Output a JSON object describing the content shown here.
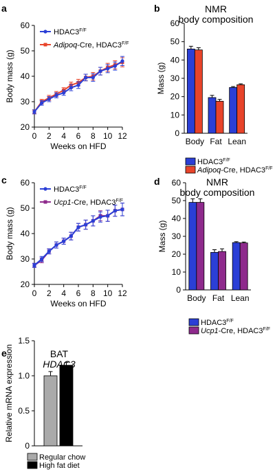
{
  "panels": [
    {
      "letter": "a",
      "chart_data": {
        "type": "line",
        "xlabel": "Weeks on HFD",
        "ylabel": "Body mass (g)",
        "xlim": [
          0,
          12
        ],
        "ylim": [
          20,
          60
        ],
        "xticks": [
          0,
          2,
          4,
          6,
          8,
          10,
          12
        ],
        "yticks": [
          20,
          30,
          40,
          50,
          60
        ],
        "legend": "top-left",
        "x": [
          0,
          1,
          2,
          3,
          4,
          5,
          6,
          7,
          8,
          9,
          10,
          11,
          12
        ],
        "series": [
          {
            "name": "HDAC3",
            "sup": "F/F",
            "color": "#2b3fd6",
            "values": [
              26,
              29.5,
              31,
              32.5,
              33.5,
              35.5,
              36.5,
              39.5,
              39.5,
              42,
              43,
              44,
              46
            ],
            "errors": [
              0.8,
              0.9,
              1,
              1,
              1,
              1.2,
              1.3,
              1.3,
              1.5,
              1.5,
              1.6,
              1.6,
              1.8
            ]
          },
          {
            "name": "",
            "name_italic": "Adipoq",
            "name_rest": "-Cre, HDAC3",
            "sup": "F/F",
            "color": "#e8442a",
            "values": [
              26,
              30,
              31.5,
              33,
              34.5,
              36.5,
              37.5,
              39.5,
              40,
              42,
              43.5,
              44.5,
              45.5
            ],
            "errors": [
              0.8,
              0.9,
              1,
              1,
              1,
              1.2,
              1.3,
              1.3,
              1.5,
              1.5,
              1.6,
              1.6,
              1.8
            ]
          }
        ]
      }
    },
    {
      "letter": "b",
      "chart_data": {
        "type": "bar",
        "title_lines": [
          "NMR",
          "body composition"
        ],
        "ylabel": "Mass (g)",
        "ylim": [
          0,
          60
        ],
        "yticks": [
          0,
          10,
          20,
          30,
          40,
          50,
          60
        ],
        "categories": [
          "Body",
          "Fat",
          "Lean"
        ],
        "legend": "bottom",
        "series": [
          {
            "name": "HDAC3",
            "sup": "F/F",
            "color": "#2b3fd6",
            "values": [
              46,
              19.5,
              25
            ],
            "errors": [
              1.5,
              1.2,
              0.5
            ]
          },
          {
            "name": "",
            "name_italic": "Adipoq",
            "name_rest": "-Cre, HDAC3",
            "sup": "F/F",
            "color": "#e8442a",
            "values": [
              45.5,
              17.5,
              26.5
            ],
            "errors": [
              1.2,
              1,
              0.5
            ]
          }
        ]
      }
    },
    {
      "letter": "c",
      "chart_data": {
        "type": "line",
        "xlabel": "Weeks on HFD",
        "ylabel": "Body mass (g)",
        "xlim": [
          0,
          12
        ],
        "ylim": [
          20,
          60
        ],
        "xticks": [
          0,
          2,
          4,
          6,
          8,
          10,
          12
        ],
        "yticks": [
          20,
          30,
          40,
          50,
          60
        ],
        "legend": "top-left",
        "x": [
          0,
          1,
          2,
          3,
          4,
          5,
          6,
          7,
          8,
          9,
          10,
          11,
          12
        ],
        "series": [
          {
            "name": "HDAC3",
            "sup": "F/F",
            "color": "#2b3fd6",
            "values": [
              27.5,
              30,
              33,
              35.5,
              37,
              39,
              42.5,
              43.5,
              45,
              46.5,
              47,
              49,
              49.5
            ],
            "errors": [
              0.8,
              1,
              1,
              1.2,
              1.2,
              1.5,
              1.5,
              1.8,
              2,
              2,
              2.2,
              2.2,
              2.5
            ]
          },
          {
            "name": "",
            "name_italic": "Ucp1",
            "name_rest": "-Cre, HDAC3",
            "sup": "F/F",
            "color": "#8e2a8c",
            "values": [
              27.5,
              29.5,
              33,
              35.5,
              37,
              39,
              42.5,
              43.5,
              45,
              47,
              47,
              49,
              49.5
            ],
            "errors": [
              0.8,
              1,
              1,
              1.2,
              1.2,
              1.5,
              1.5,
              1.8,
              2,
              2,
              2.2,
              2.2,
              2.5
            ]
          }
        ]
      }
    },
    {
      "letter": "d",
      "chart_data": {
        "type": "bar",
        "title_lines": [
          "NMR",
          "body composition"
        ],
        "ylabel": "Mass (g)",
        "ylim": [
          0,
          60
        ],
        "yticks": [
          0,
          10,
          20,
          30,
          40,
          50,
          60
        ],
        "categories": [
          "Body",
          "Fat",
          "Lean"
        ],
        "legend": "bottom",
        "series": [
          {
            "name": "HDAC3",
            "sup": "F/F",
            "color": "#2b3fd6",
            "values": [
              49,
              21,
              26.5
            ],
            "errors": [
              2,
              1.5,
              0.5
            ]
          },
          {
            "name": "",
            "name_italic": "Ucp1",
            "name_rest": "-Cre, HDAC3",
            "sup": "F/F",
            "color": "#8e2a8c",
            "values": [
              49,
              21.5,
              26.3
            ],
            "errors": [
              2,
              1.5,
              0.5
            ]
          }
        ]
      }
    },
    {
      "letter": "e",
      "chart_data": {
        "type": "bar",
        "title_lines": [
          "BAT",
          "HDAC3"
        ],
        "ylabel": "Relative mRNA expression",
        "ylim": [
          0,
          1.5
        ],
        "yticks": [
          0,
          0.5,
          1.0,
          1.5
        ],
        "ytick_labels": [
          "0",
          "0.5",
          "1.0",
          "1.5"
        ],
        "categories": [
          ""
        ],
        "legend": "bottom",
        "series": [
          {
            "name": "Regular chow",
            "color": "#aaaaaa",
            "values": [
              1.0
            ],
            "errors": [
              0.06
            ]
          },
          {
            "name": "High fat diet",
            "color": "#000000",
            "values": [
              1.15
            ],
            "errors": [
              0.04
            ]
          }
        ]
      }
    }
  ]
}
